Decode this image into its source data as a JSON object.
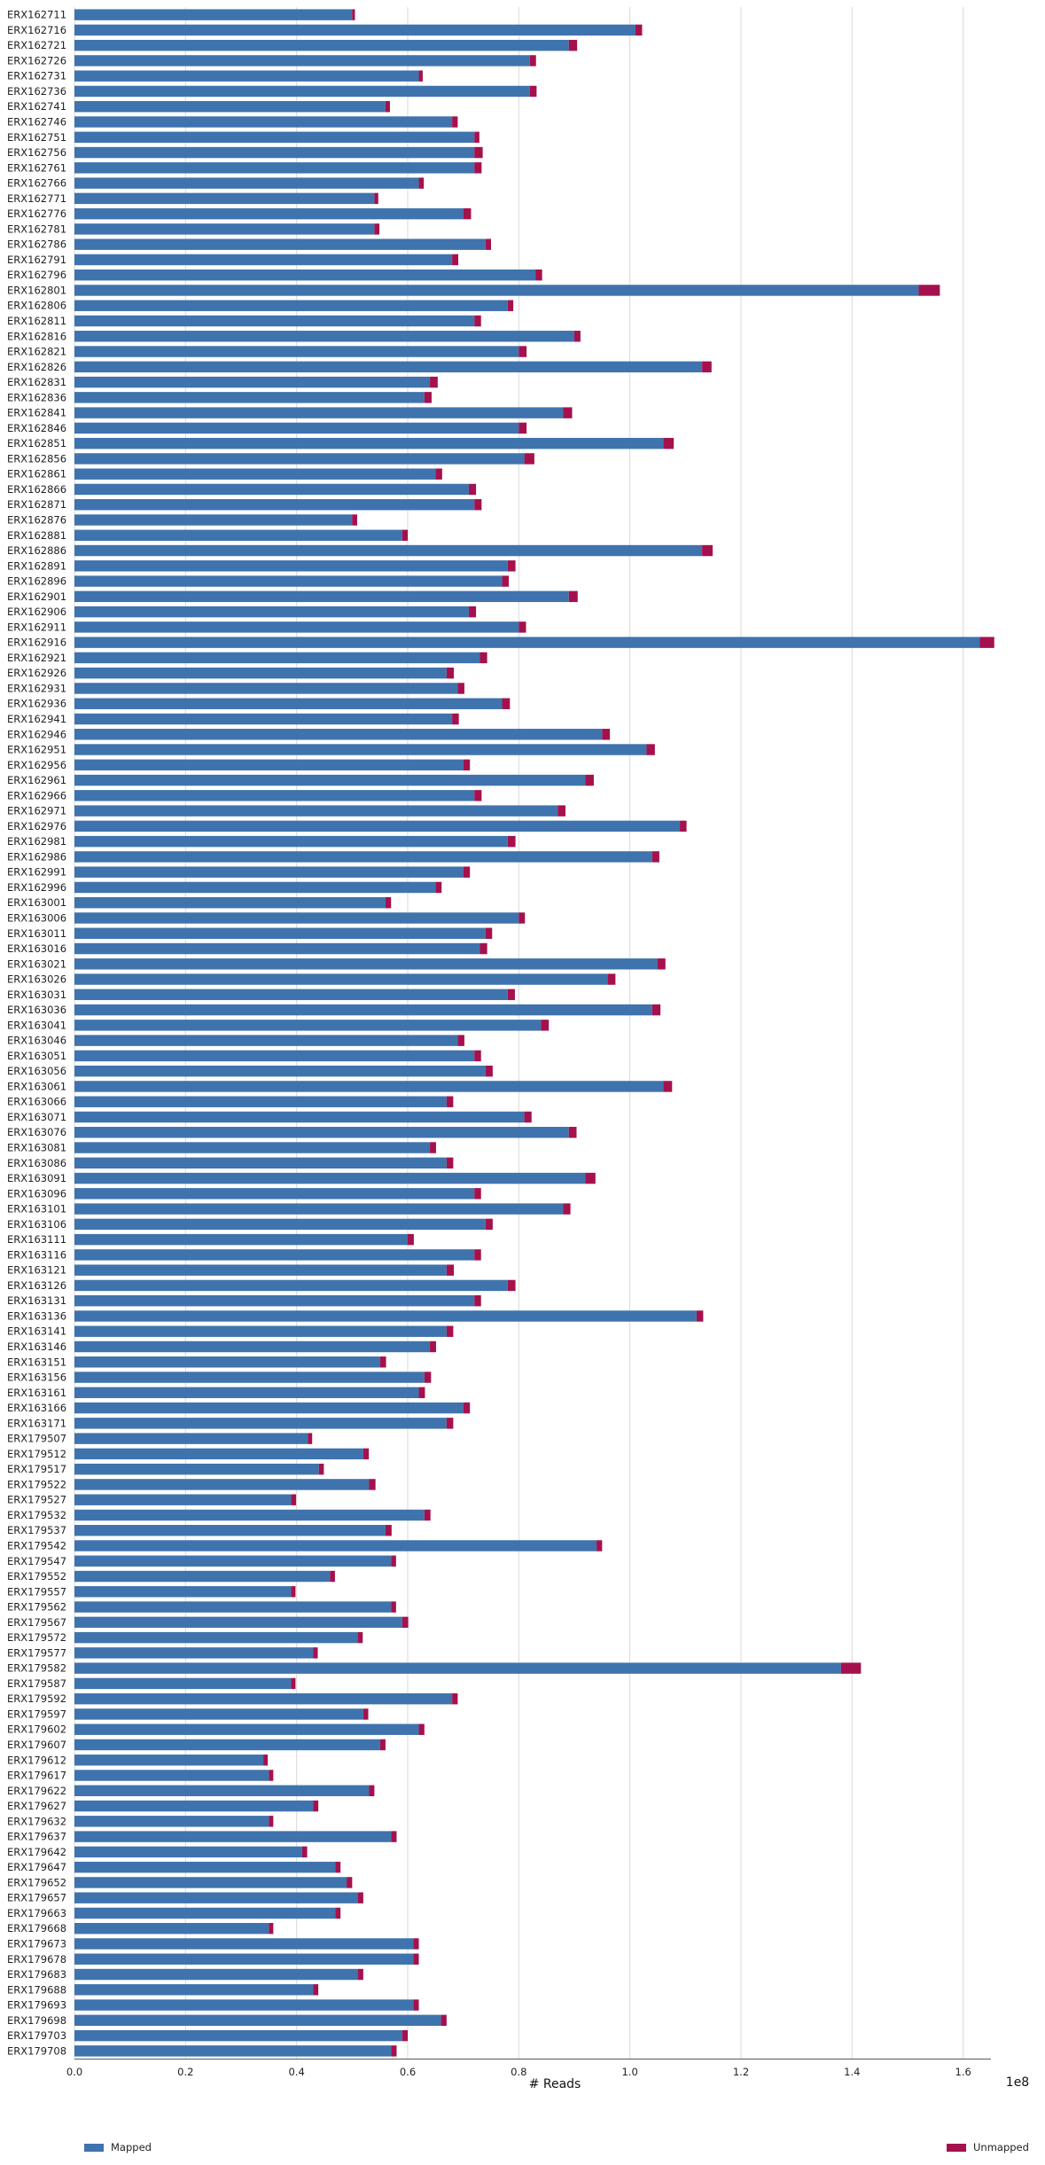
{
  "chart_data": {
    "type": "bar",
    "orientation": "horizontal",
    "stacked": true,
    "xlabel": "# Reads",
    "xlim": [
      0,
      165000000
    ],
    "x_ticks": [
      0,
      20000000,
      40000000,
      60000000,
      80000000,
      100000000,
      120000000,
      140000000,
      160000000
    ],
    "x_tick_labels": [
      "0.0",
      "0.2",
      "0.4",
      "0.6",
      "0.8",
      "1.0",
      "1.2",
      "1.4",
      "1.6"
    ],
    "x_offset_label": "1e8",
    "grid": "vertical",
    "y_tick_labels": [
      "ERX162711",
      "ERX162716",
      "ERX162721",
      "ERX162726",
      "ERX162731",
      "ERX162736",
      "ERX162741",
      "ERX162746",
      "ERX162751",
      "ERX162756",
      "ERX162761",
      "ERX162766",
      "ERX162771",
      "ERX162776",
      "ERX162781",
      "ERX162786",
      "ERX162791",
      "ERX162796",
      "ERX162801",
      "ERX162806",
      "ERX162811",
      "ERX162816",
      "ERX162821",
      "ERX162826",
      "ERX162831",
      "ERX162836",
      "ERX162841",
      "ERX162846",
      "ERX162851",
      "ERX162856",
      "ERX162861",
      "ERX162866",
      "ERX162871",
      "ERX162876",
      "ERX162881",
      "ERX162886",
      "ERX162891",
      "ERX162896",
      "ERX162901",
      "ERX162906",
      "ERX162911",
      "ERX162916",
      "ERX162921",
      "ERX162926",
      "ERX162931",
      "ERX162936",
      "ERX162941",
      "ERX162946",
      "ERX162951",
      "ERX162956",
      "ERX162961",
      "ERX162966",
      "ERX162971",
      "ERX162976",
      "ERX162981",
      "ERX162986",
      "ERX162991",
      "ERX162996",
      "ERX163001",
      "ERX163006",
      "ERX163011",
      "ERX163016",
      "ERX163021",
      "ERX163026",
      "ERX163031",
      "ERX163036",
      "ERX163041",
      "ERX163046",
      "ERX163051",
      "ERX163056",
      "ERX163061",
      "ERX163066",
      "ERX163071",
      "ERX163076",
      "ERX163081",
      "ERX163086",
      "ERX163091",
      "ERX163096",
      "ERX163101",
      "ERX163106",
      "ERX163111",
      "ERX163116",
      "ERX163121",
      "ERX163126",
      "ERX163131",
      "ERX163136",
      "ERX163141",
      "ERX163146",
      "ERX163151",
      "ERX163156",
      "ERX163161",
      "ERX163166",
      "ERX163171",
      "ERX179507",
      "ERX179512",
      "ERX179517",
      "ERX179522",
      "ERX179527",
      "ERX179532",
      "ERX179537",
      "ERX179542",
      "ERX179547",
      "ERX179552",
      "ERX179557",
      "ERX179562",
      "ERX179567",
      "ERX179572",
      "ERX179577",
      "ERX179582",
      "ERX179587",
      "ERX179592",
      "ERX179597",
      "ERX179602",
      "ERX179607",
      "ERX179612",
      "ERX179617",
      "ERX179622",
      "ERX179627",
      "ERX179632",
      "ERX179637",
      "ERX179642",
      "ERX179647",
      "ERX179652",
      "ERX179657",
      "ERX179663",
      "ERX179668",
      "ERX179673",
      "ERX179678",
      "ERX179683",
      "ERX179688",
      "ERX179693",
      "ERX179698",
      "ERX179703",
      "ERX179708"
    ],
    "series": [
      {
        "name": "Mapped",
        "color": "#3f73ad",
        "values": [
          50000000,
          101000000,
          89000000,
          82000000,
          62000000,
          82000000,
          56000000,
          68000000,
          72000000,
          72000000,
          72000000,
          62000000,
          54000000,
          70000000,
          54000000,
          74000000,
          68000000,
          83000000,
          152000000,
          78000000,
          72000000,
          90000000,
          80000000,
          113000000,
          64000000,
          63000000,
          88000000,
          80000000,
          106000000,
          81000000,
          65000000,
          71000000,
          72000000,
          50000000,
          59000000,
          113000000,
          78000000,
          77000000,
          89000000,
          71000000,
          80000000,
          163000000,
          73000000,
          67000000,
          69000000,
          77000000,
          68000000,
          95000000,
          103000000,
          70000000,
          92000000,
          72000000,
          87000000,
          109000000,
          78000000,
          104000000,
          70000000,
          65000000,
          56000000,
          80000000,
          74000000,
          73000000,
          105000000,
          96000000,
          78000000,
          104000000,
          84000000,
          69000000,
          72000000,
          74000000,
          106000000,
          67000000,
          81000000,
          89000000,
          64000000,
          67000000,
          92000000,
          72000000,
          88000000,
          74000000,
          60000000,
          72000000,
          67000000,
          78000000,
          72000000,
          112000000,
          67000000,
          64000000,
          55000000,
          63000000,
          62000000,
          70000000,
          67000000,
          42000000,
          52000000,
          44000000,
          53000000,
          39000000,
          63000000,
          56000000,
          94000000,
          57000000,
          46000000,
          39000000,
          57000000,
          59000000,
          51000000,
          43000000,
          138000000,
          39000000,
          68000000,
          52000000,
          62000000,
          55000000,
          34000000,
          35000000,
          53000000,
          43000000,
          35000000,
          57000000,
          41000000,
          47000000,
          49000000,
          51000000,
          47000000,
          35000000,
          61000000,
          61000000,
          51000000,
          43000000,
          61000000,
          66000000,
          59000000,
          57000000
        ]
      },
      {
        "name": "Unmapped",
        "color": "#a5114d",
        "values": [
          500000,
          1200000,
          1500000,
          1100000,
          700000,
          1200000,
          800000,
          1000000,
          900000,
          1500000,
          1300000,
          900000,
          700000,
          1400000,
          900000,
          1000000,
          1100000,
          1200000,
          3800000,
          1000000,
          1200000,
          1100000,
          1400000,
          1700000,
          1400000,
          1300000,
          1600000,
          1400000,
          1900000,
          1800000,
          1200000,
          1300000,
          1300000,
          900000,
          1000000,
          1900000,
          1400000,
          1200000,
          1600000,
          1300000,
          1300000,
          2600000,
          1300000,
          1300000,
          1200000,
          1400000,
          1200000,
          1400000,
          1500000,
          1200000,
          1500000,
          1300000,
          1400000,
          1200000,
          1400000,
          1300000,
          1200000,
          1100000,
          1000000,
          1100000,
          1200000,
          1300000,
          1400000,
          1400000,
          1300000,
          1500000,
          1400000,
          1200000,
          1200000,
          1300000,
          1600000,
          1200000,
          1300000,
          1400000,
          1100000,
          1200000,
          1800000,
          1200000,
          1300000,
          1300000,
          1100000,
          1200000,
          1300000,
          1400000,
          1200000,
          1200000,
          1200000,
          1100000,
          1100000,
          1200000,
          1100000,
          1200000,
          1200000,
          800000,
          1000000,
          900000,
          1200000,
          900000,
          1100000,
          1100000,
          1000000,
          900000,
          900000,
          800000,
          900000,
          1100000,
          900000,
          800000,
          3600000,
          800000,
          1000000,
          900000,
          1000000,
          1000000,
          800000,
          800000,
          1000000,
          900000,
          800000,
          1000000,
          900000,
          900000,
          1000000,
          1000000,
          900000,
          800000,
          1000000,
          1000000,
          1000000,
          900000,
          1000000,
          1000000,
          1000000,
          1000000
        ]
      }
    ],
    "legend": {
      "position": "bottom",
      "entries": [
        {
          "label": "Mapped",
          "color": "#3f73ad"
        },
        {
          "label": "Unmapped",
          "color": "#a5114d"
        }
      ]
    }
  }
}
